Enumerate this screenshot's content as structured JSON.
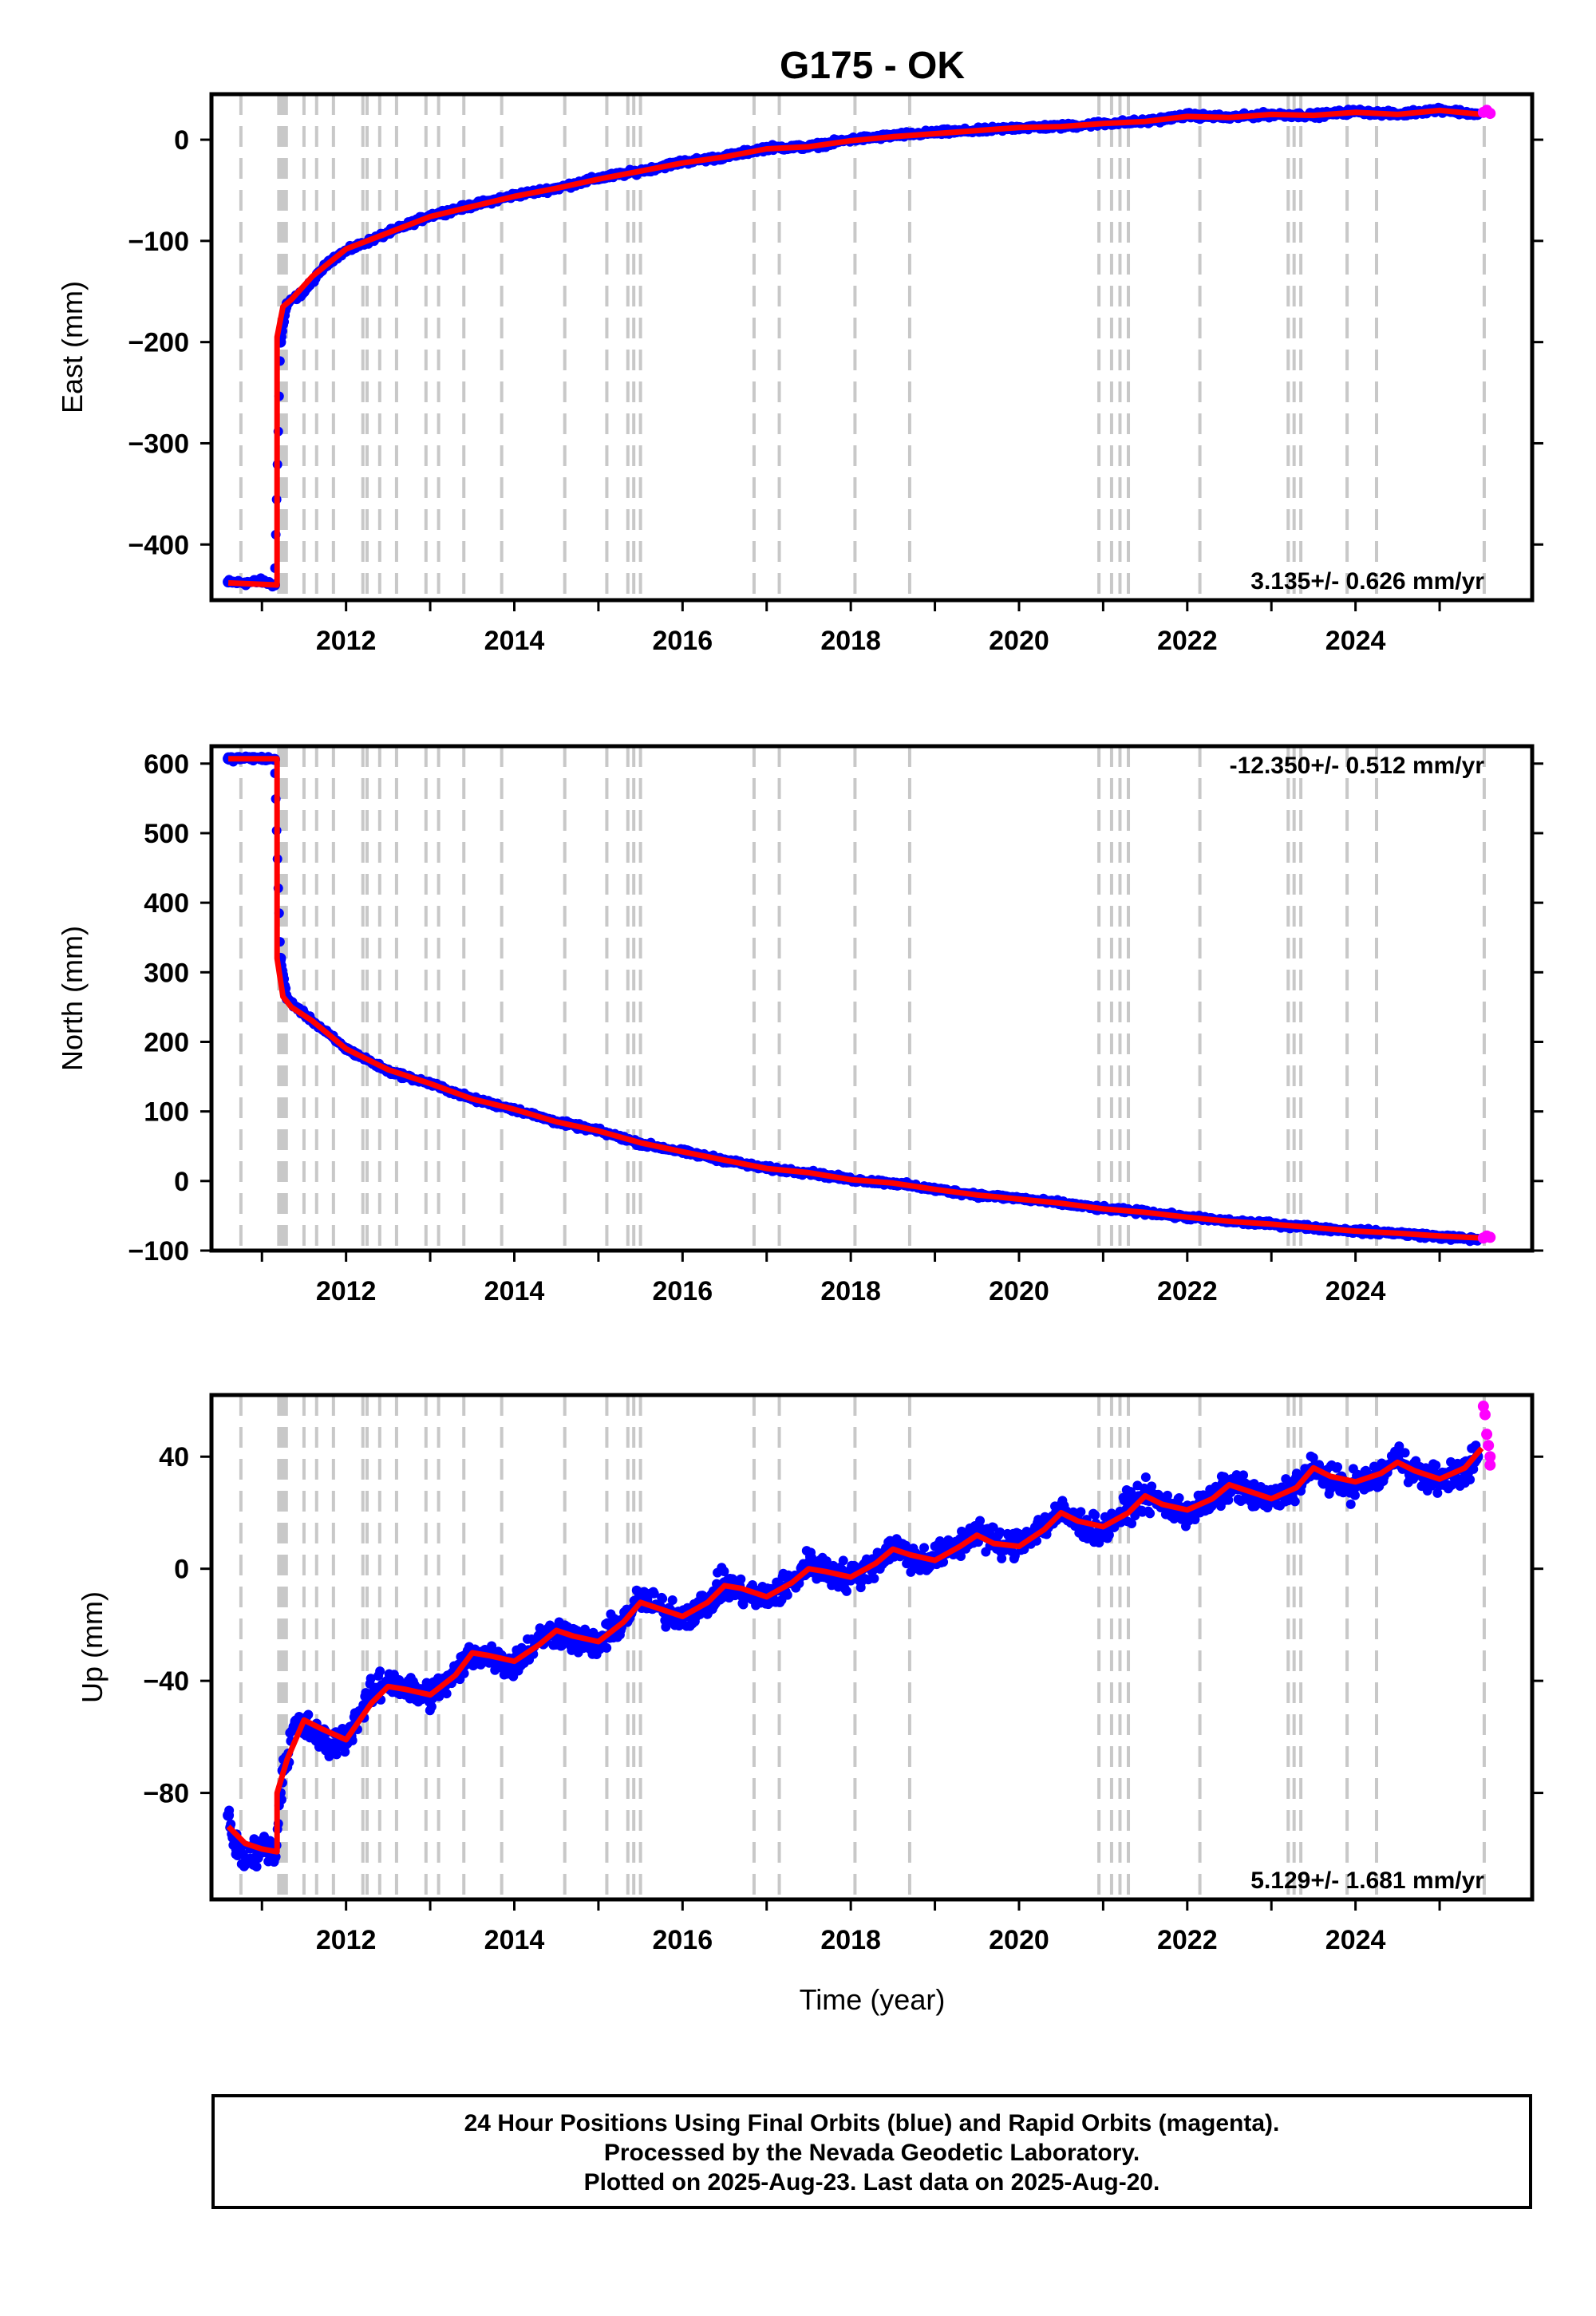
{
  "chart_data": [
    {
      "type": "scatter",
      "title": "G175 - OK",
      "ylabel": "East (mm)",
      "xlabel": "",
      "xlim": [
        2010.4,
        2026.1
      ],
      "ylim": [
        -455,
        45
      ],
      "yticks": [
        0,
        -100,
        -200,
        -300,
        -400
      ],
      "ytick_labels": [
        "0",
        "−100",
        "−200",
        "−300",
        "−400"
      ],
      "xticks": [
        2012,
        2014,
        2016,
        2018,
        2020,
        2022,
        2024
      ],
      "rate_label": "3.135+/- 0.626 mm/yr",
      "rate_position": "bottom-right",
      "grid": false,
      "series": [
        {
          "color": "#0000ff",
          "marker": "dot",
          "x": [
            2010.6,
            2010.8,
            2011.0,
            2011.15,
            2011.22,
            2011.3,
            2011.5,
            2011.8,
            2012.0,
            2012.5,
            2013.0,
            2013.5,
            2014.0,
            2014.5,
            2015.0,
            2015.5,
            2016.0,
            2016.5,
            2017.0,
            2017.5,
            2018.0,
            2018.5,
            2019.0,
            2019.5,
            2020.0,
            2020.5,
            2021.0,
            2021.5,
            2022.0,
            2022.5,
            2023.0,
            2023.5,
            2024.0,
            2024.5,
            2025.0,
            2025.45
          ],
          "y": [
            -437,
            -438,
            -436,
            -440,
            -200,
            -162,
            -150,
            -120,
            -110,
            -92,
            -75,
            -65,
            -55,
            -48,
            -38,
            -31,
            -22,
            -17,
            -8,
            -7,
            0,
            4,
            7,
            9,
            12,
            13,
            16,
            18,
            24,
            22,
            25,
            24,
            28,
            25,
            30,
            25
          ]
        },
        {
          "color": "#ff00ff",
          "marker": "dot",
          "x": [
            2025.52,
            2025.56,
            2025.6
          ],
          "y": [
            27,
            29,
            26
          ]
        },
        {
          "color": "#ff0000",
          "marker": "line",
          "x": [
            2010.6,
            2011.18,
            2011.18,
            2011.25,
            2011.35,
            2011.6,
            2012.0,
            2012.5,
            2013.0,
            2013.5,
            2014.0,
            2014.5,
            2015.0,
            2015.5,
            2016.0,
            2016.5,
            2017.0,
            2017.5,
            2018.0,
            2018.5,
            2019.0,
            2019.5,
            2020.0,
            2020.5,
            2021.0,
            2021.5,
            2022.0,
            2022.5,
            2023.0,
            2023.5,
            2024.0,
            2024.5,
            2025.0,
            2025.5
          ],
          "y": [
            -438,
            -440,
            -195,
            -165,
            -158,
            -135,
            -108,
            -92,
            -76,
            -66,
            -56,
            -48,
            -39,
            -31,
            -23,
            -17,
            -9,
            -7,
            -1,
            3,
            6,
            9,
            12,
            13,
            16,
            18,
            23,
            22,
            25,
            24,
            27,
            25,
            29,
            25
          ]
        }
      ],
      "vlines_color": "#c8c8c8",
      "vlines": [
        2010.75,
        2011.2,
        2011.23,
        2011.26,
        2011.29,
        2011.5,
        2011.65,
        2011.85,
        2012.2,
        2012.25,
        2012.4,
        2012.6,
        2012.95,
        2013.1,
        2013.4,
        2013.85,
        2014.6,
        2015.1,
        2015.35,
        2015.42,
        2015.5,
        2016.85,
        2017.15,
        2018.05,
        2018.7,
        2020.95,
        2021.1,
        2021.2,
        2021.3,
        2022.15,
        2023.2,
        2023.27,
        2023.35,
        2023.9,
        2024.25,
        2025.53
      ]
    },
    {
      "type": "scatter",
      "title": "",
      "ylabel": "North (mm)",
      "xlabel": "",
      "xlim": [
        2010.4,
        2026.1
      ],
      "ylim": [
        -100,
        625
      ],
      "yticks": [
        600,
        500,
        400,
        300,
        200,
        100,
        0,
        -100
      ],
      "ytick_labels": [
        "600",
        "500",
        "400",
        "300",
        "200",
        "100",
        "0",
        "−100"
      ],
      "xticks": [
        2012,
        2014,
        2016,
        2018,
        2020,
        2022,
        2024
      ],
      "rate_label": "-12.350+/- 0.512 mm/yr",
      "rate_position": "top-right",
      "grid": false,
      "series": [
        {
          "color": "#0000ff",
          "marker": "dot",
          "x": [
            2010.6,
            2010.9,
            2011.15,
            2011.22,
            2011.3,
            2011.5,
            2012.0,
            2012.5,
            2013.0,
            2013.5,
            2014.0,
            2014.5,
            2015.0,
            2015.5,
            2016.0,
            2016.5,
            2017.0,
            2017.5,
            2018.0,
            2018.5,
            2019.0,
            2019.5,
            2020.0,
            2020.5,
            2021.0,
            2021.5,
            2022.0,
            2022.5,
            2023.0,
            2023.5,
            2024.0,
            2024.5,
            2025.0,
            2025.45
          ],
          "y": [
            607,
            608,
            606,
            320,
            262,
            240,
            190,
            158,
            140,
            118,
            103,
            85,
            72,
            54,
            42,
            30,
            18,
            12,
            2,
            -3,
            -12,
            -20,
            -25,
            -32,
            -40,
            -45,
            -52,
            -58,
            -62,
            -67,
            -72,
            -75,
            -80,
            -84
          ]
        },
        {
          "color": "#ff00ff",
          "marker": "dot",
          "x": [
            2025.52,
            2025.56,
            2025.6
          ],
          "y": [
            -82,
            -79,
            -81
          ]
        },
        {
          "color": "#ff0000",
          "marker": "line",
          "x": [
            2010.6,
            2011.18,
            2011.18,
            2011.25,
            2011.35,
            2011.6,
            2012.0,
            2012.5,
            2013.0,
            2013.5,
            2014.0,
            2014.5,
            2015.0,
            2015.5,
            2016.0,
            2016.5,
            2017.0,
            2017.5,
            2018.0,
            2018.5,
            2019.0,
            2019.5,
            2020.0,
            2020.5,
            2021.0,
            2021.5,
            2022.0,
            2022.5,
            2023.0,
            2023.5,
            2024.0,
            2024.5,
            2025.0,
            2025.5
          ],
          "y": [
            607,
            607,
            320,
            265,
            250,
            230,
            190,
            160,
            140,
            118,
            103,
            85,
            72,
            55,
            42,
            30,
            18,
            12,
            2,
            -3,
            -12,
            -20,
            -26,
            -32,
            -40,
            -45,
            -52,
            -58,
            -62,
            -67,
            -72,
            -75,
            -79,
            -82
          ]
        }
      ],
      "vlines_color": "#c8c8c8",
      "vlines": [
        2010.75,
        2011.2,
        2011.23,
        2011.26,
        2011.29,
        2011.5,
        2011.65,
        2011.85,
        2012.2,
        2012.25,
        2012.4,
        2012.6,
        2012.95,
        2013.1,
        2013.4,
        2013.85,
        2014.6,
        2015.1,
        2015.35,
        2015.42,
        2015.5,
        2016.85,
        2017.15,
        2018.05,
        2018.7,
        2020.95,
        2021.1,
        2021.2,
        2021.3,
        2022.15,
        2023.2,
        2023.27,
        2023.35,
        2023.9,
        2024.25,
        2025.53
      ]
    },
    {
      "type": "scatter",
      "title": "",
      "ylabel": "Up (mm)",
      "xlabel": "Time (year)",
      "xlim": [
        2010.4,
        2026.1
      ],
      "ylim": [
        -118,
        62
      ],
      "yticks": [
        40,
        0,
        -40,
        -80
      ],
      "ytick_labels": [
        "40",
        "0",
        "−40",
        "−80"
      ],
      "xticks": [
        2012,
        2014,
        2016,
        2018,
        2020,
        2022,
        2024
      ],
      "rate_label": "5.129+/- 1.681 mm/yr",
      "rate_position": "bottom-right",
      "grid": false,
      "series": [
        {
          "color": "#0000ff",
          "marker": "dot",
          "x": [
            2010.6,
            2010.7,
            2010.8,
            2011.0,
            2011.15,
            2011.25,
            2011.4,
            2011.6,
            2011.8,
            2012.0,
            2012.3,
            2012.5,
            2012.8,
            2013.0,
            2013.3,
            2013.5,
            2013.8,
            2014.0,
            2014.3,
            2014.5,
            2014.8,
            2015.0,
            2015.3,
            2015.5,
            2015.8,
            2016.0,
            2016.3,
            2016.5,
            2016.8,
            2017.0,
            2017.3,
            2017.5,
            2017.8,
            2018.0,
            2018.3,
            2018.5,
            2018.8,
            2019.0,
            2019.3,
            2019.5,
            2019.8,
            2020.0,
            2020.3,
            2020.5,
            2020.8,
            2021.0,
            2021.3,
            2021.5,
            2021.8,
            2022.0,
            2022.3,
            2022.5,
            2022.8,
            2023.0,
            2023.3,
            2023.5,
            2023.8,
            2024.0,
            2024.3,
            2024.5,
            2024.8,
            2025.0,
            2025.3,
            2025.45
          ],
          "y": [
            -88,
            -100,
            -105,
            -98,
            -103,
            -72,
            -55,
            -58,
            -63,
            -60,
            -45,
            -40,
            -44,
            -45,
            -38,
            -30,
            -32,
            -34,
            -25,
            -22,
            -26,
            -27,
            -18,
            -11,
            -15,
            -17,
            -12,
            -5,
            -10,
            -10,
            -5,
            2,
            -2,
            -3,
            2,
            8,
            3,
            4,
            8,
            14,
            8,
            10,
            16,
            20,
            15,
            13,
            22,
            26,
            22,
            20,
            24,
            30,
            26,
            24,
            30,
            36,
            30,
            30,
            33,
            40,
            33,
            32,
            35,
            40
          ]
        },
        {
          "color": "#ff00ff",
          "marker": "dot",
          "x": [
            2025.52,
            2025.54,
            2025.56,
            2025.58,
            2025.6,
            2025.6
          ],
          "y": [
            58,
            55,
            48,
            44,
            40,
            37
          ]
        },
        {
          "color": "#ff0000",
          "marker": "line",
          "x": [
            2010.6,
            2010.8,
            2011.0,
            2011.18,
            2011.18,
            2011.3,
            2011.5,
            2011.7,
            2012.0,
            2012.3,
            2012.5,
            2012.7,
            2013.0,
            2013.3,
            2013.5,
            2013.7,
            2014.0,
            2014.3,
            2014.5,
            2014.7,
            2015.0,
            2015.3,
            2015.5,
            2015.7,
            2016.0,
            2016.3,
            2016.5,
            2016.7,
            2017.0,
            2017.3,
            2017.5,
            2017.7,
            2018.0,
            2018.3,
            2018.5,
            2018.7,
            2019.0,
            2019.3,
            2019.5,
            2019.7,
            2020.0,
            2020.3,
            2020.5,
            2020.7,
            2021.0,
            2021.3,
            2021.5,
            2021.7,
            2022.0,
            2022.3,
            2022.5,
            2022.7,
            2023.0,
            2023.3,
            2023.5,
            2023.7,
            2024.0,
            2024.3,
            2024.5,
            2024.7,
            2025.0,
            2025.3,
            2025.5
          ],
          "y": [
            -92,
            -98,
            -100,
            -101,
            -80,
            -68,
            -54,
            -57,
            -61,
            -48,
            -42,
            -43,
            -45,
            -38,
            -30,
            -31,
            -33,
            -27,
            -22,
            -24,
            -26,
            -19,
            -12,
            -14,
            -17,
            -12,
            -6,
            -7,
            -10,
            -5,
            0,
            -1,
            -3,
            2,
            7,
            5,
            3,
            8,
            12,
            9,
            8,
            14,
            20,
            17,
            15,
            20,
            26,
            23,
            21,
            25,
            30,
            28,
            25,
            29,
            36,
            33,
            31,
            34,
            38,
            35,
            32,
            36,
            43
          ]
        }
      ],
      "vlines_color": "#c8c8c8",
      "vlines": [
        2010.75,
        2011.2,
        2011.23,
        2011.26,
        2011.29,
        2011.5,
        2011.65,
        2011.85,
        2012.2,
        2012.25,
        2012.4,
        2012.6,
        2012.95,
        2013.1,
        2013.4,
        2013.85,
        2014.6,
        2015.1,
        2015.35,
        2015.42,
        2015.5,
        2016.85,
        2017.15,
        2018.05,
        2018.7,
        2020.95,
        2021.1,
        2021.2,
        2021.3,
        2022.15,
        2023.2,
        2023.27,
        2023.35,
        2023.9,
        2024.25,
        2025.53
      ]
    }
  ],
  "footer": {
    "line1": "24 Hour Positions Using Final Orbits (blue) and Rapid Orbits (magenta).",
    "line2": "Processed by the Nevada Geodetic Laboratory.",
    "line3": "Plotted on 2025-Aug-23. Last data on 2025-Aug-20."
  }
}
